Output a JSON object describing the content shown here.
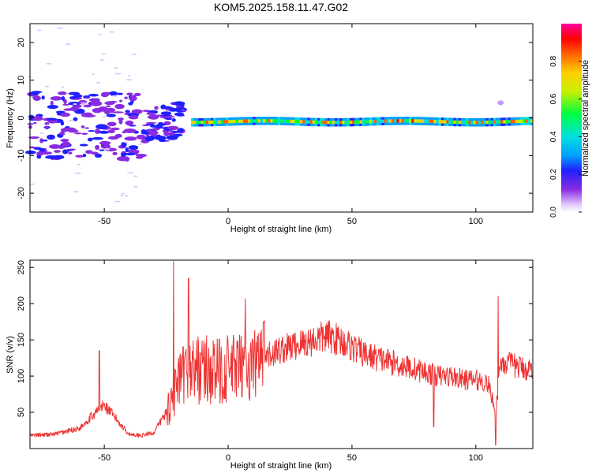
{
  "title": "KOM5.2025.158.11.47.G02",
  "chart_data": [
    {
      "type": "heatmap",
      "xlabel": "Height of straight line (km)",
      "ylabel": "Frequency (Hz)",
      "xlim": [
        -80,
        123
      ],
      "ylim": [
        -25,
        25
      ],
      "xticks": [
        -50,
        0,
        50,
        100
      ],
      "yticks": [
        -20,
        -10,
        0,
        10,
        20
      ],
      "grid": false,
      "colorbar": {
        "label": "Normalized spectral amplitude",
        "range": [
          0,
          1
        ],
        "ticks": [
          "0.0",
          "0.2",
          "0.4",
          "0.6",
          "0.8"
        ]
      },
      "description_blobs": [
        {
          "x_from": -80,
          "x_to": -35,
          "freq_center": -2,
          "freq_spread": 7,
          "amplitude": 0.08
        },
        {
          "x_from": -35,
          "x_to": -15,
          "freq_center": 0,
          "freq_spread": 4,
          "amplitude": 0.12
        },
        {
          "x_from": -15,
          "x_to": 123,
          "freq_center": -1,
          "freq_spread": 1,
          "amplitude": 0.5
        }
      ]
    },
    {
      "type": "line",
      "xlabel": "Height of straight line (km)",
      "ylabel": "SNR (v/v)",
      "xlim": [
        -80,
        123
      ],
      "ylim": [
        0,
        260
      ],
      "xticks": [
        -50,
        0,
        50,
        100
      ],
      "yticks": [
        50,
        100,
        150,
        200,
        250
      ],
      "color": "#ee3333",
      "envelope": {
        "x": [
          -80,
          -70,
          -60,
          -55,
          -50,
          -45,
          -40,
          -35,
          -30,
          -25,
          -20,
          -15,
          -10,
          -5,
          0,
          5,
          10,
          15,
          20,
          25,
          30,
          35,
          40,
          45,
          50,
          55,
          60,
          65,
          70,
          75,
          80,
          85,
          90,
          95,
          100,
          105,
          108,
          110,
          115,
          120,
          123
        ],
        "y": [
          18,
          20,
          28,
          45,
          60,
          40,
          20,
          18,
          22,
          50,
          90,
          110,
          110,
          105,
          110,
          110,
          115,
          125,
          135,
          140,
          145,
          150,
          155,
          150,
          140,
          130,
          125,
          120,
          115,
          110,
          105,
          100,
          100,
          95,
          95,
          90,
          50,
          120,
          115,
          110,
          110
        ]
      },
      "spikes": [
        {
          "x": -52,
          "y": 135
        },
        {
          "x": -22,
          "y": 258
        },
        {
          "x": -16,
          "y": 235
        },
        {
          "x": 7,
          "y": 207
        },
        {
          "x": 109,
          "y": 210
        },
        {
          "x": 108,
          "y": 5
        },
        {
          "x": 83,
          "y": 30
        }
      ]
    }
  ]
}
